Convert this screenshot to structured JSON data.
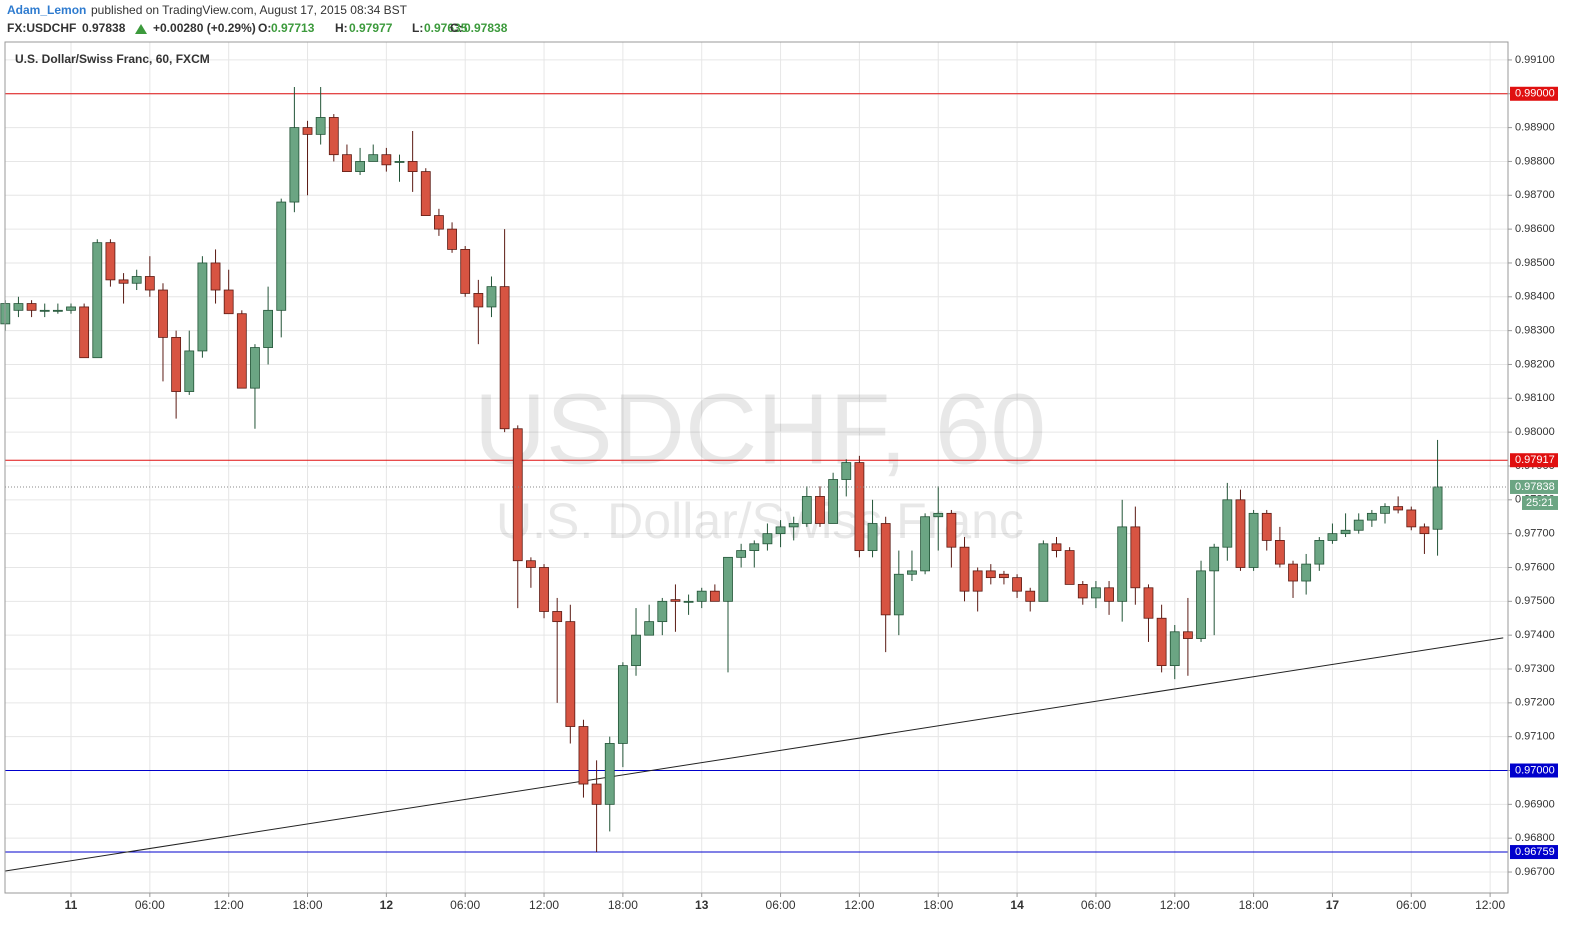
{
  "header": {
    "author": "Adam_Lemon",
    "published": "published on TradingView.com, August 17, 2015 08:34 BST",
    "symbol": "FX:USDCHF",
    "change": "+0.00280 (+0.29%)",
    "o_label": "O:",
    "h_label": "H:",
    "l_label": "L:",
    "c_label": "C:"
  },
  "chart_data": {
    "type": "candlestick",
    "title": "U.S. Dollar/Swiss Franc, 60, FXCM",
    "watermark": {
      "symbol": "USDCHF, 60",
      "name": "U.S. Dollar/Swiss Franc"
    },
    "up_color": "#6ba583",
    "up_border": "#225437",
    "down_color": "#d75442",
    "down_border": "#5b1a13",
    "categories": [
      null,
      null,
      null,
      null,
      null,
      "11",
      null,
      null,
      null,
      null,
      null,
      "06:00",
      null,
      null,
      null,
      null,
      null,
      "12:00",
      null,
      null,
      null,
      null,
      null,
      "18:00",
      null,
      null,
      null,
      null,
      null,
      "12",
      null,
      null,
      null,
      null,
      null,
      "06:00",
      null,
      null,
      null,
      null,
      null,
      "12:00",
      null,
      null,
      null,
      null,
      null,
      "18:00",
      null,
      null,
      null,
      null,
      null,
      "13",
      null,
      null,
      null,
      null,
      null,
      "06:00",
      null,
      null,
      null,
      null,
      null,
      "12:00",
      null,
      null,
      null,
      null,
      null,
      "18:00",
      null,
      null,
      null,
      null,
      null,
      "14",
      null,
      null,
      null,
      null,
      null,
      "06:00",
      null,
      null,
      null,
      null,
      null,
      "12:00",
      null,
      null,
      null,
      null,
      null,
      "18:00",
      null,
      null,
      null,
      null,
      null,
      "17",
      null,
      null,
      null,
      null,
      null,
      "06:00",
      null,
      null,
      null,
      null,
      null,
      "12:00",
      null
    ],
    "open": [
      0.9832,
      0.9836,
      0.9838,
      0.9836,
      0.9836,
      0.9836,
      0.9837,
      0.9822,
      0.9856,
      0.9845,
      0.9844,
      0.9846,
      0.9842,
      0.9828,
      0.9812,
      0.9824,
      0.985,
      0.9842,
      0.9835,
      0.9813,
      0.9825,
      0.9836,
      0.9868,
      0.989,
      0.9888,
      0.9893,
      0.9882,
      0.9877,
      0.988,
      0.9882,
      0.988,
      0.988,
      0.9877,
      0.9864,
      0.986,
      0.9854,
      0.9841,
      0.9837,
      0.9843,
      0.9801,
      0.9762,
      0.976,
      0.9747,
      0.9744,
      0.9713,
      0.9696,
      0.969,
      0.9708,
      0.9731,
      0.974,
      0.9744,
      0.97505,
      0.975,
      0.975,
      0.9753,
      0.975,
      0.9763,
      0.9765,
      0.9767,
      0.977,
      0.9772,
      0.9773,
      0.9781,
      0.9773,
      0.9786,
      0.9791,
      0.9765,
      0.9773,
      0.9746,
      0.9758,
      0.9759,
      0.9775,
      0.9776,
      0.9766,
      0.9759,
      0.9759,
      0.9758,
      0.9757,
      0.9753,
      0.975,
      0.9767,
      0.9765,
      0.9755,
      0.9751,
      0.9754,
      0.975,
      0.9772,
      0.9754,
      0.9745,
      0.9731,
      0.9741,
      0.9739,
      0.9759,
      0.9766,
      0.978,
      0.976,
      0.9776,
      0.9768,
      0.9761,
      0.9756,
      0.9761,
      0.9768,
      0.977,
      0.9771,
      0.9774,
      0.9776,
      0.9778,
      0.9777,
      0.9772,
      0.97713,
      null,
      null,
      null,
      null,
      null
    ],
    "high": [
      0.9839,
      0.984,
      0.9839,
      0.9838,
      0.9838,
      0.9838,
      0.9838,
      0.9857,
      0.9857,
      0.9847,
      0.9848,
      0.9852,
      0.9844,
      0.983,
      0.983,
      0.9852,
      0.9854,
      0.9848,
      0.9836,
      0.9826,
      0.9843,
      0.9869,
      0.9902,
      0.9892,
      0.9902,
      0.9894,
      0.9885,
      0.9884,
      0.9885,
      0.9884,
      0.9882,
      0.9889,
      0.9878,
      0.9866,
      0.9862,
      0.9855,
      0.9845,
      0.9846,
      0.986,
      0.9802,
      0.9763,
      0.9761,
      0.9751,
      0.9749,
      0.9715,
      0.9703,
      0.971,
      0.9732,
      0.9748,
      0.9749,
      0.9751,
      0.9755,
      0.9752,
      0.9754,
      0.9755,
      0.9763,
      0.9767,
      0.9768,
      0.9773,
      0.9774,
      0.9775,
      0.9784,
      0.9784,
      0.9788,
      0.9792,
      0.9793,
      0.978,
      0.9775,
      0.9765,
      0.9765,
      0.9776,
      0.9784,
      0.9777,
      0.9769,
      0.976,
      0.9761,
      0.9759,
      0.9758,
      0.9754,
      0.9768,
      0.9769,
      0.9766,
      0.9756,
      0.9756,
      0.9756,
      0.978,
      0.9778,
      0.9755,
      0.9749,
      0.9743,
      0.9751,
      0.9762,
      0.9767,
      0.9785,
      0.9783,
      0.9777,
      0.9777,
      0.9772,
      0.9762,
      0.9764,
      0.9769,
      0.9773,
      0.9776,
      0.9776,
      0.9777,
      0.9779,
      0.9781,
      0.9778,
      0.9773,
      0.97977,
      null,
      null,
      null,
      null,
      null
    ],
    "low": [
      0.983,
      0.9834,
      0.9834,
      0.9834,
      0.9835,
      0.9835,
      0.9822,
      0.9822,
      0.9843,
      0.9838,
      0.9842,
      0.984,
      0.9815,
      0.9804,
      0.9811,
      0.9822,
      0.9838,
      0.9835,
      0.9813,
      0.9801,
      0.982,
      0.9828,
      0.9865,
      0.987,
      0.9885,
      0.988,
      0.9877,
      0.9876,
      0.988,
      0.9877,
      0.9874,
      0.9871,
      0.9864,
      0.9858,
      0.9853,
      0.984,
      0.9826,
      0.9834,
      0.98,
      0.9748,
      0.9754,
      0.9745,
      0.972,
      0.9708,
      0.9692,
      0.96759,
      0.9682,
      0.9701,
      0.9728,
      0.974,
      0.974,
      0.9741,
      0.9746,
      0.9748,
      0.975,
      0.9729,
      0.976,
      0.976,
      0.9765,
      0.9766,
      0.9768,
      0.9772,
      0.9772,
      0.9773,
      0.9781,
      0.9763,
      0.9763,
      0.9735,
      0.974,
      0.9756,
      0.9758,
      0.9765,
      0.976,
      0.975,
      0.9747,
      0.9755,
      0.9755,
      0.9751,
      0.9747,
      0.975,
      0.9763,
      0.9755,
      0.9749,
      0.9748,
      0.9746,
      0.9744,
      0.9749,
      0.9738,
      0.9729,
      0.9727,
      0.9728,
      0.9738,
      0.974,
      0.9762,
      0.9759,
      0.9759,
      0.9765,
      0.976,
      0.9751,
      0.9752,
      0.9759,
      0.9767,
      0.9769,
      0.977,
      0.9772,
      0.9773,
      0.9776,
      0.9771,
      0.9764,
      0.97635,
      null,
      null,
      null,
      null,
      null
    ],
    "close": [
      0.9838,
      0.9838,
      0.9836,
      0.9836,
      0.9836,
      0.9837,
      0.9822,
      0.9856,
      0.9845,
      0.9844,
      0.9846,
      0.9842,
      0.9828,
      0.9812,
      0.9824,
      0.985,
      0.9842,
      0.9835,
      0.9813,
      0.9825,
      0.9836,
      0.9868,
      0.989,
      0.9888,
      0.9893,
      0.9882,
      0.9877,
      0.988,
      0.9882,
      0.9879,
      0.988,
      0.9877,
      0.9864,
      0.986,
      0.9854,
      0.9841,
      0.9837,
      0.9843,
      0.9801,
      0.9762,
      0.976,
      0.9747,
      0.9744,
      0.9713,
      0.9696,
      0.969,
      0.9708,
      0.9731,
      0.974,
      0.9744,
      0.975,
      0.975,
      0.975,
      0.9753,
      0.975,
      0.9763,
      0.9765,
      0.9767,
      0.977,
      0.9772,
      0.9773,
      0.9781,
      0.9773,
      0.9786,
      0.9791,
      0.9765,
      0.9773,
      0.9746,
      0.9758,
      0.9759,
      0.9775,
      0.9776,
      0.9766,
      0.9753,
      0.9753,
      0.9757,
      0.9757,
      0.9753,
      0.975,
      0.9767,
      0.9765,
      0.9755,
      0.9751,
      0.9754,
      0.975,
      0.9772,
      0.9754,
      0.9745,
      0.9731,
      0.9741,
      0.9739,
      0.9759,
      0.9766,
      0.978,
      0.976,
      0.9776,
      0.9768,
      0.9761,
      0.9756,
      0.9761,
      0.9768,
      0.977,
      0.9771,
      0.9774,
      0.9776,
      0.9778,
      0.9777,
      0.9772,
      0.977,
      0.97838,
      null,
      null,
      null,
      null,
      null
    ],
    "ylim": [
      0.96638,
      0.99153
    ],
    "yticks": [
      {
        "value": 0.967,
        "label": "0.96700"
      },
      {
        "value": 0.968,
        "label": "0.96800"
      },
      {
        "value": 0.969,
        "label": "0.96900"
      },
      {
        "value": 0.97,
        "label": "0.97000"
      },
      {
        "value": 0.971,
        "label": "0.97100"
      },
      {
        "value": 0.972,
        "label": "0.97200"
      },
      {
        "value": 0.973,
        "label": "0.97300"
      },
      {
        "value": 0.974,
        "label": "0.97400"
      },
      {
        "value": 0.975,
        "label": "0.97500"
      },
      {
        "value": 0.976,
        "label": "0.97600"
      },
      {
        "value": 0.977,
        "label": "0.97700"
      },
      {
        "value": 0.978,
        "label": "0.97800"
      },
      {
        "value": 0.979,
        "label": "0.97900"
      },
      {
        "value": 0.98,
        "label": "0.98000"
      },
      {
        "value": 0.981,
        "label": "0.98100"
      },
      {
        "value": 0.982,
        "label": "0.98200"
      },
      {
        "value": 0.983,
        "label": "0.98300"
      },
      {
        "value": 0.984,
        "label": "0.98400"
      },
      {
        "value": 0.985,
        "label": "0.98500"
      },
      {
        "value": 0.986,
        "label": "0.98600"
      },
      {
        "value": 0.987,
        "label": "0.98700"
      },
      {
        "value": 0.988,
        "label": "0.98800"
      },
      {
        "value": 0.989,
        "label": "0.98900"
      },
      {
        "value": 0.99,
        "label": "0.99000"
      },
      {
        "value": 0.991,
        "label": "0.99100"
      }
    ],
    "grid": true,
    "levels": [
      {
        "value": 0.99,
        "label": "0.99000",
        "color": "#e01010"
      },
      {
        "value": 0.97917,
        "label": "0.97917",
        "color": "#e01010"
      },
      {
        "value": 0.97,
        "label": "0.97000",
        "color": "#0000cc"
      },
      {
        "value": 0.96759,
        "label": "0.96759",
        "color": "#0000cc"
      }
    ],
    "countdown": "25:21",
    "trend_line": {
      "x": [
        0,
        114
      ],
      "y": [
        0.96703,
        0.97392
      ],
      "color": "#222222"
    }
  }
}
